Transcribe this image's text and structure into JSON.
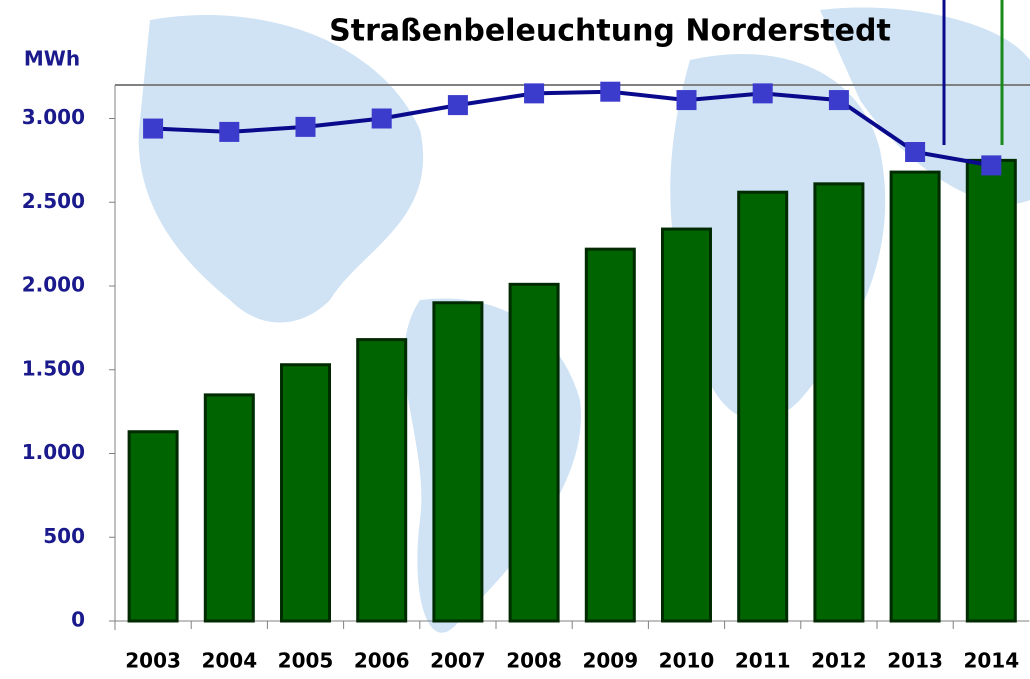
{
  "chart_data": {
    "type": "bar_line",
    "title": "Straßenbeleuchtung Norderstedt",
    "y_label": "MWh",
    "categories": [
      "2003",
      "2004",
      "2005",
      "2006",
      "2007",
      "2008",
      "2009",
      "2010",
      "2011",
      "2012",
      "2013",
      "2014"
    ],
    "series": [
      {
        "type": "bar",
        "color": "#006400",
        "values": [
          1130,
          1350,
          1530,
          1680,
          1900,
          2010,
          2220,
          2340,
          2560,
          2610,
          2680,
          2750
        ]
      },
      {
        "type": "line",
        "color": "#0a0a8c",
        "marker_color": "#3b3bcc",
        "values": [
          2940,
          2920,
          2950,
          3000,
          3080,
          3150,
          3160,
          3110,
          3150,
          3110,
          2800,
          2720
        ]
      }
    ],
    "ylim": [
      0,
      3200
    ],
    "yticks": [
      0,
      500,
      {
        "value": 1000,
        "label": "1.000"
      },
      {
        "value": 1500,
        "label": "1.500"
      },
      {
        "value": 2000,
        "label": "2.000"
      },
      {
        "value": 2500,
        "label": "2.500"
      },
      {
        "value": 3000,
        "label": "3.000"
      }
    ]
  }
}
